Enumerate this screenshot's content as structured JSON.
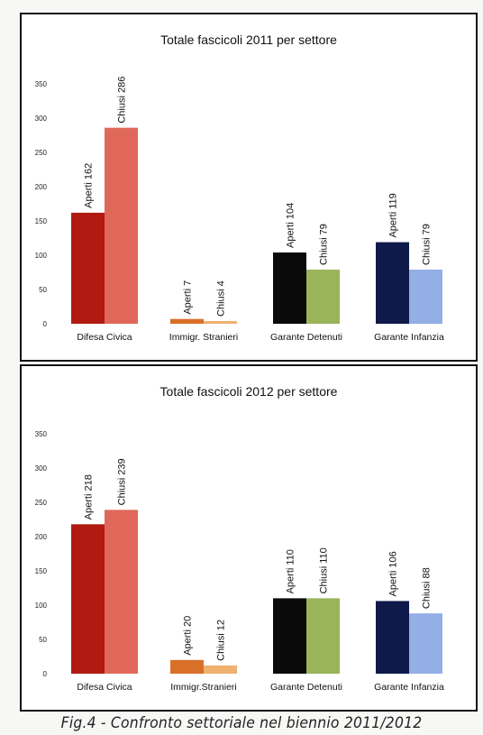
{
  "chart_data": [
    {
      "type": "bar",
      "title": "Totale fascicoli 2011 per settore",
      "categories": [
        "Difesa Civica",
        "Immigr. Stranieri",
        "Garante Detenuti",
        "Garante Infanzia"
      ],
      "bars": [
        [
          {
            "label": "Aperti 162",
            "value": 162,
            "color": "#b01a10"
          },
          {
            "label": "Chiusi 286",
            "value": 286,
            "color": "#e0685a"
          }
        ],
        [
          {
            "label": "Aperti 7",
            "value": 7,
            "color": "#d9702a"
          },
          {
            "label": "Chiusi 4",
            "value": 4,
            "color": "#f0b070"
          }
        ],
        [
          {
            "label": "Aperti 104",
            "value": 104,
            "color": "#0a0a0a"
          },
          {
            "label": "Chiusi 79",
            "value": 79,
            "color": "#9ab45a"
          }
        ],
        [
          {
            "label": "Aperti 119",
            "value": 119,
            "color": "#0f1a4a"
          },
          {
            "label": "Chiusi 79",
            "value": 79,
            "color": "#94aee6"
          }
        ]
      ],
      "yticks": [
        "0",
        "50",
        "100",
        "150",
        "200",
        "250",
        "300",
        "350"
      ],
      "ylim": [
        0,
        350
      ],
      "grid": false
    },
    {
      "type": "bar",
      "title": "Totale fascicoli 2012 per settore",
      "categories": [
        "Difesa Civica",
        "Immigr.Stranieri",
        "Garante Detenuti",
        "Garante Infanzia"
      ],
      "bars": [
        [
          {
            "label": "Aperti 218",
            "value": 218,
            "color": "#b01a10"
          },
          {
            "label": "Chiusi 239",
            "value": 239,
            "color": "#e0685a"
          }
        ],
        [
          {
            "label": "Aperti 20",
            "value": 20,
            "color": "#d9702a"
          },
          {
            "label": "Chiusi 12",
            "value": 12,
            "color": "#f0b070"
          }
        ],
        [
          {
            "label": "Aperti 110",
            "value": 110,
            "color": "#0a0a0a"
          },
          {
            "label": "Chiusi 110",
            "value": 110,
            "color": "#9ab45a"
          }
        ],
        [
          {
            "label": "Aperti 106",
            "value": 106,
            "color": "#0f1a4a"
          },
          {
            "label": "Chiusi 88",
            "value": 88,
            "color": "#94aee6"
          }
        ]
      ],
      "yticks": [
        "0",
        "50",
        "100",
        "150",
        "200",
        "250",
        "300",
        "350"
      ],
      "ylim": [
        0,
        350
      ],
      "grid": false
    }
  ],
  "caption": "Fig.4 - Confronto settoriale nel biennio 2011/2012"
}
